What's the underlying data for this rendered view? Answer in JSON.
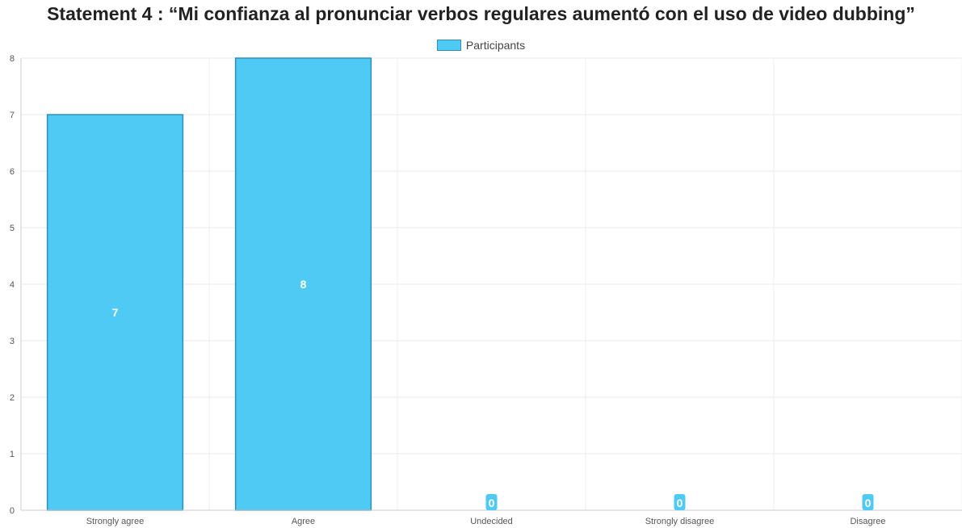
{
  "chart_data": {
    "type": "bar",
    "title": "Statement 4 : “Mi confianza al pronunciar verbos regulares aumentó con el uso de video dubbing”",
    "xlabel": "",
    "ylabel": "",
    "categories": [
      "Strongly agree",
      "Agree",
      "Undecided",
      "Strongly disagree",
      "Disagree"
    ],
    "series": [
      {
        "name": "Participants",
        "values": [
          7,
          8,
          0,
          0,
          0
        ],
        "color": "#4ecaf5",
        "border_color": "#2f8fb8"
      }
    ],
    "ylim": [
      0,
      8
    ],
    "yticks": [
      0,
      1,
      2,
      3,
      4,
      5,
      6,
      7,
      8
    ],
    "grid": true,
    "legend_position": "top-center",
    "data_labels": true
  }
}
